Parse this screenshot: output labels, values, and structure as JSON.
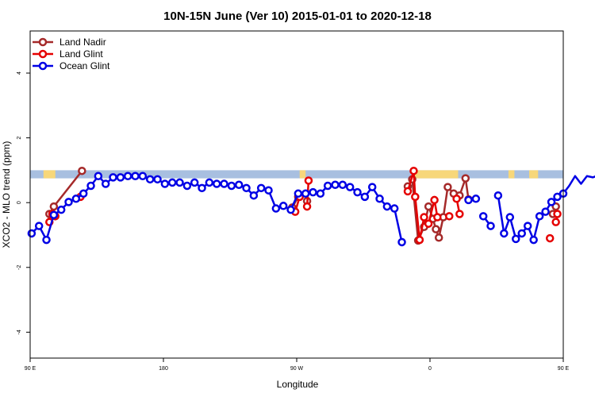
{
  "chart_data": {
    "type": "line",
    "title": "10N-15N June (Ver 10)   2015-01-01 to 2020-12-18",
    "xlabel": "Longitude",
    "ylabel": "XCO2 - MLO trend (ppm)",
    "xlim": [
      90,
      450
    ],
    "ylim": [
      -4.8,
      5.3
    ],
    "x_ticks": [
      {
        "value": 90,
        "label": "90 E"
      },
      {
        "value": 180,
        "label": "180"
      },
      {
        "value": 270,
        "label": "90 W"
      },
      {
        "value": 360,
        "label": "0"
      },
      {
        "value": 450,
        "label": "90 E"
      },
      {
        "value": 540,
        "label": "180"
      }
    ],
    "y_ticks": [
      {
        "value": -4,
        "label": "-4"
      },
      {
        "value": -2,
        "label": "-2"
      },
      {
        "value": 0,
        "label": "0"
      },
      {
        "value": 2,
        "label": "2"
      },
      {
        "value": 4,
        "label": "4"
      }
    ],
    "legend_position": "top-left",
    "land_band": {
      "y_min": 0.75,
      "y_max": 1.0,
      "ocean_color": "#a8bfe0",
      "land_color": "#f7d77a"
    },
    "land_spans": [
      [
        99,
        107
      ],
      [
        272,
        276
      ],
      [
        349,
        379
      ],
      [
        413,
        417
      ],
      [
        427,
        433
      ],
      [
        475,
        479
      ]
    ],
    "series": [
      {
        "name": "Land Nadir",
        "color": "#a52a2a",
        "segments": [
          [
            [
              103,
              -0.35
            ],
            [
              106,
              -0.12
            ],
            [
              125,
              0.98
            ]
          ],
          [
            [
              267,
              -0.15
            ],
            [
              271,
              0.18
            ]
          ],
          [
            [
              277,
              0.05
            ]
          ],
          [
            [
              345,
              0.5
            ],
            [
              348,
              0.72
            ],
            [
              352,
              -1.17
            ],
            [
              356,
              -0.75
            ],
            [
              359,
              -0.12
            ],
            [
              362,
              -0.5
            ],
            [
              364,
              -0.82
            ],
            [
              366,
              -1.08
            ],
            [
              369,
              -0.45
            ],
            [
              372,
              0.48
            ],
            [
              376,
              0.28
            ],
            [
              380,
              0.22
            ],
            [
              384,
              0.75
            ],
            [
              386,
              0.1
            ]
          ],
          [
            [
              443,
              -0.35
            ],
            [
              445,
              -0.12
            ]
          ],
          [
            [
              456,
              0.98
            ]
          ]
        ]
      },
      {
        "name": "Land Glint",
        "color": "#e50000",
        "segments": [
          [
            [
              103,
              -0.6
            ],
            [
              105,
              -0.35
            ],
            [
              107,
              -0.42
            ]
          ],
          [
            [
              124,
              0.18
            ]
          ],
          [
            [
              269,
              -0.28
            ],
            [
              272,
              0.18
            ]
          ],
          [
            [
              277,
              -0.12
            ],
            [
              278,
              0.68
            ]
          ],
          [
            [
              345,
              0.35
            ],
            [
              349,
              0.98
            ],
            [
              350,
              0.18
            ],
            [
              353,
              -1.15
            ],
            [
              356,
              -0.45
            ],
            [
              359,
              -0.65
            ],
            [
              363,
              0.08
            ],
            [
              365,
              -0.45
            ]
          ],
          [
            [
              373,
              -0.42
            ]
          ],
          [
            [
              378,
              0.12
            ],
            [
              380,
              -0.35
            ]
          ],
          [
            [
              441,
              -1.1
            ]
          ],
          [
            [
              445,
              -0.6
            ],
            [
              446,
              -0.35
            ]
          ],
          [
            [
              455,
              0.12
            ]
          ]
        ]
      },
      {
        "name": "Ocean Glint",
        "color": "#0000e5",
        "segments": [
          [
            [
              91,
              -0.95
            ],
            [
              96,
              -0.72
            ],
            [
              101,
              -1.15
            ],
            [
              106,
              -0.38
            ],
            [
              111,
              -0.22
            ],
            [
              116,
              0.02
            ],
            [
              121,
              0.12
            ],
            [
              126,
              0.28
            ],
            [
              131,
              0.52
            ],
            [
              136,
              0.82
            ],
            [
              141,
              0.58
            ],
            [
              146,
              0.78
            ],
            [
              151,
              0.78
            ],
            [
              156,
              0.82
            ],
            [
              161,
              0.82
            ],
            [
              166,
              0.82
            ],
            [
              171,
              0.72
            ],
            [
              176,
              0.72
            ],
            [
              181,
              0.58
            ],
            [
              186,
              0.62
            ],
            [
              191,
              0.62
            ],
            [
              196,
              0.52
            ],
            [
              201,
              0.62
            ],
            [
              206,
              0.45
            ],
            [
              211,
              0.62
            ],
            [
              216,
              0.58
            ],
            [
              221,
              0.58
            ],
            [
              226,
              0.52
            ],
            [
              231,
              0.55
            ],
            [
              236,
              0.45
            ],
            [
              241,
              0.22
            ],
            [
              246,
              0.45
            ],
            [
              251,
              0.38
            ],
            [
              256,
              -0.18
            ],
            [
              261,
              -0.1
            ],
            [
              266,
              -0.22
            ],
            [
              271,
              0.28
            ],
            [
              276,
              0.28
            ],
            [
              281,
              0.32
            ],
            [
              286,
              0.28
            ],
            [
              291,
              0.52
            ],
            [
              296,
              0.55
            ],
            [
              301,
              0.55
            ],
            [
              306,
              0.48
            ],
            [
              311,
              0.32
            ],
            [
              316,
              0.18
            ],
            [
              321,
              0.48
            ],
            [
              326,
              0.12
            ],
            [
              331,
              -0.12
            ],
            [
              336,
              -0.18
            ],
            [
              341,
              -1.22
            ]
          ],
          [
            [
              386,
              0.08
            ],
            [
              391,
              0.12
            ]
          ],
          [
            [
              396,
              -0.42
            ],
            [
              401,
              -0.72
            ]
          ],
          [
            [
              406,
              0.22
            ],
            [
              410,
              -0.95
            ],
            [
              414,
              -0.45
            ],
            [
              418,
              -1.12
            ],
            [
              422,
              -0.95
            ],
            [
              426,
              -0.72
            ],
            [
              430,
              -1.15
            ],
            [
              434,
              -0.42
            ],
            [
              438,
              -0.28
            ],
            [
              442,
              0.02
            ],
            [
              446,
              0.18
            ],
            [
              450,
              0.28
            ],
            [
              454,
              0.52
            ],
            [
              458,
              0.82
            ],
            [
              462,
              0.58
            ],
            [
              466,
              0.82
            ],
            [
              470,
              0.78
            ],
            [
              474,
              0.85
            ],
            [
              478,
              0.82
            ],
            [
              482,
              0.82
            ],
            [
              486,
              0.72
            ],
            [
              490,
              0.75
            ]
          ]
        ]
      }
    ]
  }
}
